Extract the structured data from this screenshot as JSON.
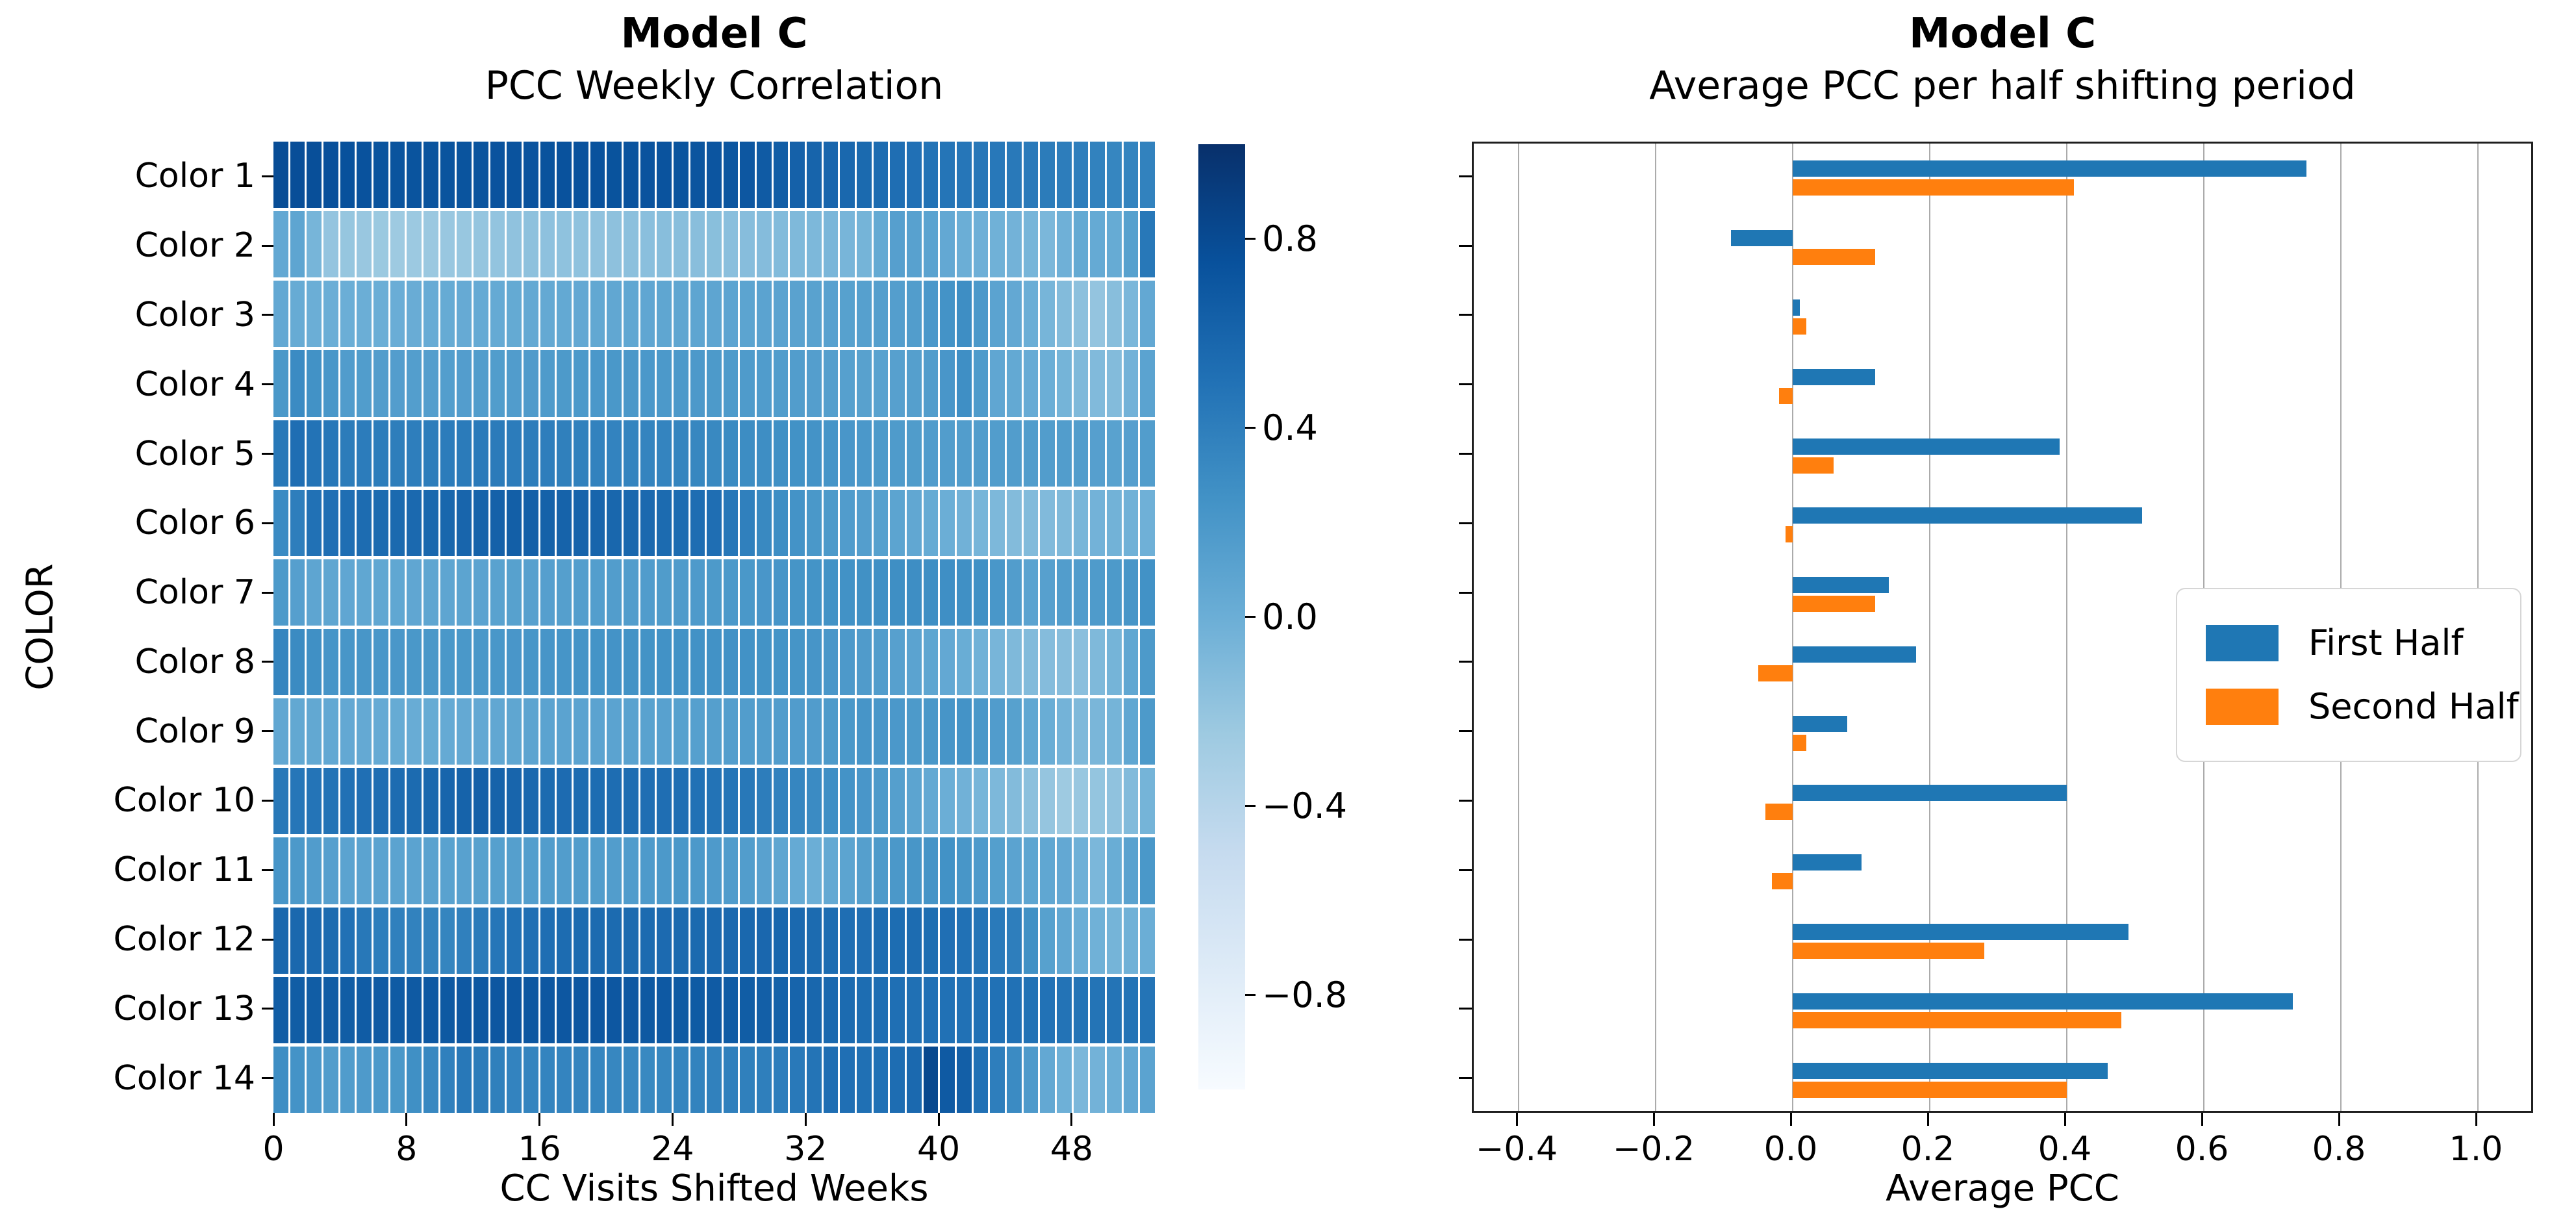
{
  "chart_data": [
    {
      "type": "heatmap",
      "title": "Model C",
      "subtitle": "PCC Weekly Correlation",
      "xlabel": "CC Visits Shifted Weeks",
      "ylabel": "COLOR",
      "categories": [
        "Color 1",
        "Color 2",
        "Color 3",
        "Color 4",
        "Color 5",
        "Color 6",
        "Color 7",
        "Color 8",
        "Color 9",
        "Color 10",
        "Color 11",
        "Color 12",
        "Color 13",
        "Color 14"
      ],
      "x_ticks": [
        0,
        8,
        16,
        24,
        32,
        40,
        48
      ],
      "n_weeks": 53,
      "vmin": -1.0,
      "vmax": 1.0,
      "colormap_name": "Blues",
      "colormap_stops": [
        "#f7fbff",
        "#deebf7",
        "#c6dbef",
        "#9ecae1",
        "#6baed6",
        "#4292c6",
        "#2171b5",
        "#08519c",
        "#08306b"
      ],
      "cell_gap_color": "#ffffff",
      "colorbar_ticks": [
        {
          "value": 0.8,
          "label": "0.8"
        },
        {
          "value": 0.4,
          "label": "0.4"
        },
        {
          "value": 0.0,
          "label": "0.0"
        },
        {
          "value": -0.4,
          "label": "−0.4"
        },
        {
          "value": -0.8,
          "label": "−0.8"
        }
      ],
      "rows": [
        {
          "label": "Color 1",
          "anchor_weeks": [
            0,
            6,
            12,
            18,
            24,
            28,
            32,
            36,
            40,
            44,
            48,
            50,
            52
          ],
          "anchor_values": [
            0.78,
            0.73,
            0.73,
            0.74,
            0.73,
            0.7,
            0.6,
            0.54,
            0.47,
            0.44,
            0.4,
            0.34,
            0.37
          ]
        },
        {
          "label": "Color 2",
          "anchor_weeks": [
            0,
            1,
            3,
            7,
            11,
            15,
            19,
            23,
            27,
            31,
            35,
            37,
            39,
            41,
            44,
            46,
            48,
            50,
            51,
            52
          ],
          "anchor_values": [
            0.05,
            0.08,
            -0.2,
            -0.25,
            -0.22,
            -0.17,
            -0.18,
            -0.14,
            -0.15,
            -0.1,
            -0.05,
            0.13,
            0.1,
            0.0,
            -0.04,
            -0.08,
            0.04,
            0.03,
            0.12,
            0.45
          ]
        },
        {
          "label": "Color 3",
          "anchor_weeks": [
            0,
            2,
            6,
            10,
            14,
            18,
            22,
            26,
            30,
            34,
            38,
            41,
            43,
            45,
            47,
            49,
            51,
            52
          ],
          "anchor_values": [
            0.05,
            0.0,
            0.0,
            0.03,
            0.04,
            0.05,
            0.07,
            0.08,
            0.1,
            0.12,
            0.15,
            0.28,
            0.1,
            0.0,
            -0.12,
            -0.2,
            -0.08,
            0.05
          ]
        },
        {
          "label": "Color 4",
          "anchor_weeks": [
            0,
            1,
            4,
            9,
            14,
            20,
            26,
            31,
            36,
            39,
            41,
            43,
            46,
            48,
            50,
            51,
            52
          ],
          "anchor_values": [
            0.2,
            0.3,
            0.16,
            0.14,
            0.16,
            0.2,
            0.18,
            0.15,
            0.11,
            0.15,
            0.27,
            0.07,
            0.0,
            -0.1,
            -0.12,
            -0.04,
            0.1
          ]
        },
        {
          "label": "Color 5",
          "anchor_weeks": [
            0,
            1,
            4,
            8,
            12,
            16,
            20,
            24,
            28,
            32,
            36,
            40,
            44,
            48,
            50,
            52
          ],
          "anchor_values": [
            0.45,
            0.52,
            0.42,
            0.4,
            0.43,
            0.4,
            0.36,
            0.35,
            0.29,
            0.24,
            0.18,
            0.15,
            0.15,
            0.15,
            0.11,
            0.15
          ]
        },
        {
          "label": "Color 6",
          "anchor_weeks": [
            0,
            2,
            6,
            10,
            14,
            18,
            22,
            26,
            29,
            32,
            36,
            40,
            44,
            47,
            49,
            52
          ],
          "anchor_values": [
            0.3,
            0.5,
            0.55,
            0.58,
            0.64,
            0.6,
            0.56,
            0.52,
            0.32,
            0.2,
            0.12,
            0.0,
            -0.12,
            -0.1,
            -0.04,
            -0.02
          ]
        },
        {
          "label": "Color 7",
          "anchor_weeks": [
            0,
            2,
            6,
            10,
            14,
            18,
            22,
            26,
            30,
            34,
            38,
            42,
            45,
            47,
            50,
            52
          ],
          "anchor_values": [
            0.18,
            0.08,
            0.06,
            0.08,
            0.12,
            0.14,
            0.16,
            0.18,
            0.22,
            0.25,
            0.28,
            0.26,
            0.1,
            0.15,
            0.18,
            0.25
          ]
        },
        {
          "label": "Color 8",
          "anchor_weeks": [
            0,
            3,
            8,
            12,
            16,
            20,
            24,
            28,
            32,
            36,
            40,
            44,
            48,
            50,
            52
          ],
          "anchor_values": [
            0.35,
            0.22,
            0.2,
            0.2,
            0.22,
            0.24,
            0.25,
            0.25,
            0.22,
            0.15,
            0.05,
            -0.1,
            -0.15,
            -0.05,
            0.18
          ]
        },
        {
          "label": "Color 9",
          "anchor_weeks": [
            0,
            4,
            8,
            12,
            16,
            20,
            24,
            28,
            32,
            35,
            38,
            41,
            44,
            48,
            50,
            52
          ],
          "anchor_values": [
            0.06,
            0.05,
            0.02,
            0.05,
            0.1,
            0.1,
            0.12,
            0.15,
            0.16,
            0.22,
            0.18,
            0.24,
            0.12,
            -0.1,
            -0.05,
            0.18
          ]
        },
        {
          "label": "Color 10",
          "anchor_weeks": [
            0,
            4,
            8,
            12,
            16,
            20,
            24,
            28,
            32,
            36,
            40,
            44,
            47,
            50,
            52
          ],
          "anchor_values": [
            0.45,
            0.5,
            0.55,
            0.63,
            0.55,
            0.53,
            0.52,
            0.45,
            0.3,
            0.18,
            0.0,
            -0.12,
            -0.25,
            -0.18,
            -0.05
          ]
        },
        {
          "label": "Color 11",
          "anchor_weeks": [
            0,
            4,
            8,
            12,
            16,
            20,
            24,
            28,
            32,
            36,
            40,
            44,
            47,
            49,
            52
          ],
          "anchor_values": [
            0.22,
            0.1,
            0.1,
            0.12,
            0.15,
            0.15,
            0.2,
            0.15,
            0.0,
            0.18,
            0.25,
            0.1,
            0.05,
            -0.08,
            0.2
          ]
        },
        {
          "label": "Color 12",
          "anchor_weeks": [
            0,
            3,
            6,
            10,
            14,
            18,
            22,
            26,
            30,
            34,
            38,
            41,
            44,
            46,
            48,
            50,
            52
          ],
          "anchor_values": [
            0.58,
            0.55,
            0.4,
            0.35,
            0.5,
            0.55,
            0.55,
            0.56,
            0.58,
            0.52,
            0.54,
            0.5,
            0.4,
            0.12,
            0.0,
            -0.05,
            0.0
          ]
        },
        {
          "label": "Color 13",
          "anchor_weeks": [
            0,
            4,
            8,
            12,
            16,
            20,
            24,
            28,
            32,
            36,
            40,
            44,
            48,
            52
          ],
          "anchor_values": [
            0.66,
            0.66,
            0.68,
            0.7,
            0.7,
            0.7,
            0.68,
            0.66,
            0.58,
            0.52,
            0.5,
            0.5,
            0.48,
            0.48
          ]
        },
        {
          "label": "Color 14",
          "anchor_weeks": [
            0,
            3,
            7,
            11,
            14,
            18,
            22,
            26,
            30,
            33,
            36,
            38,
            39,
            40,
            41,
            42,
            44,
            46,
            48,
            50,
            52
          ],
          "anchor_values": [
            0.28,
            0.15,
            0.2,
            0.45,
            0.36,
            0.35,
            0.32,
            0.38,
            0.4,
            0.52,
            0.5,
            0.56,
            0.82,
            0.68,
            0.64,
            0.5,
            0.3,
            0.05,
            -0.08,
            0.0,
            0.1
          ]
        }
      ]
    },
    {
      "type": "bar",
      "orientation": "horizontal",
      "title": "Model C",
      "subtitle": "Average PCC per half shifting period",
      "xlabel": "Average PCC",
      "xlim": [
        -0.466,
        1.083
      ],
      "grid": true,
      "x_ticks": [
        {
          "value": -0.4,
          "label": "−0.4"
        },
        {
          "value": -0.2,
          "label": "−0.2"
        },
        {
          "value": 0.0,
          "label": "0.0"
        },
        {
          "value": 0.2,
          "label": "0.2"
        },
        {
          "value": 0.4,
          "label": "0.4"
        },
        {
          "value": 0.6,
          "label": "0.6"
        },
        {
          "value": 0.8,
          "label": "0.8"
        },
        {
          "value": 1.0,
          "label": "1.0"
        }
      ],
      "categories": [
        "Color 1",
        "Color 2",
        "Color 3",
        "Color 4",
        "Color 5",
        "Color 6",
        "Color 7",
        "Color 8",
        "Color 9",
        "Color 10",
        "Color 11",
        "Color 12",
        "Color 13",
        "Color 14"
      ],
      "series": [
        {
          "name": "First Half",
          "color": "#1f77b4",
          "values": [
            0.75,
            -0.09,
            0.01,
            0.12,
            0.39,
            0.51,
            0.14,
            0.18,
            0.08,
            0.4,
            0.1,
            0.49,
            0.73,
            0.46
          ]
        },
        {
          "name": "Second Half",
          "color": "#ff7f0e",
          "values": [
            0.41,
            0.12,
            0.02,
            -0.02,
            0.06,
            -0.01,
            0.12,
            -0.05,
            0.02,
            -0.04,
            -0.03,
            0.28,
            0.48,
            0.4
          ]
        }
      ],
      "legend": {
        "labels": [
          "First Half",
          "Second Half"
        ],
        "position": "center-right"
      }
    }
  ]
}
